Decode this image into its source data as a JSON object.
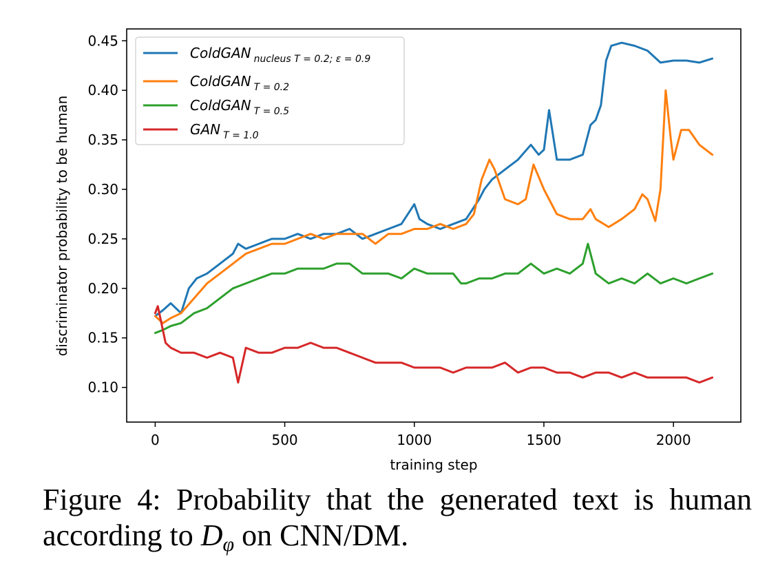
{
  "chart_data": {
    "type": "line",
    "title": "",
    "xlabel": "training step",
    "ylabel": "discriminator probability to be human",
    "xlim": [
      -110,
      2260
    ],
    "ylim": [
      0.065,
      0.462
    ],
    "xticks": [
      0,
      500,
      1000,
      1500,
      2000
    ],
    "xtick_labels": [
      "0",
      "500",
      "1000",
      "1500",
      "2000"
    ],
    "yticks": [
      0.1,
      0.15,
      0.2,
      0.25,
      0.3,
      0.35,
      0.4,
      0.45
    ],
    "ytick_labels": [
      "0.10",
      "0.15",
      "0.20",
      "0.25",
      "0.30",
      "0.35",
      "0.40",
      "0.45"
    ],
    "grid": false,
    "legend_position": "upper-left",
    "series": [
      {
        "name": "ColdGAN",
        "subscript": "nucleus T = 0.2; ε = 0.9",
        "color": "#1f77b4",
        "x": [
          0,
          30,
          60,
          100,
          130,
          160,
          200,
          250,
          300,
          320,
          350,
          400,
          450,
          500,
          550,
          600,
          650,
          700,
          750,
          800,
          850,
          900,
          950,
          1000,
          1020,
          1050,
          1100,
          1150,
          1200,
          1250,
          1270,
          1300,
          1350,
          1400,
          1450,
          1480,
          1500,
          1520,
          1550,
          1600,
          1650,
          1680,
          1700,
          1720,
          1740,
          1760,
          1800,
          1850,
          1900,
          1950,
          2000,
          2050,
          2100,
          2150
        ],
        "y": [
          0.172,
          0.178,
          0.185,
          0.175,
          0.2,
          0.21,
          0.215,
          0.225,
          0.235,
          0.245,
          0.24,
          0.245,
          0.25,
          0.25,
          0.255,
          0.25,
          0.255,
          0.255,
          0.26,
          0.25,
          0.255,
          0.26,
          0.265,
          0.285,
          0.27,
          0.265,
          0.26,
          0.265,
          0.27,
          0.29,
          0.3,
          0.31,
          0.32,
          0.33,
          0.345,
          0.335,
          0.34,
          0.38,
          0.33,
          0.33,
          0.335,
          0.365,
          0.37,
          0.385,
          0.43,
          0.445,
          0.448,
          0.445,
          0.44,
          0.428,
          0.43,
          0.43,
          0.428,
          0.432
        ]
      },
      {
        "name": "ColdGAN",
        "subscript": "T = 0.2",
        "color": "#ff7f0e",
        "x": [
          0,
          30,
          60,
          100,
          150,
          200,
          250,
          300,
          350,
          400,
          450,
          500,
          550,
          600,
          650,
          700,
          750,
          800,
          850,
          900,
          950,
          1000,
          1050,
          1100,
          1150,
          1200,
          1230,
          1260,
          1290,
          1310,
          1350,
          1400,
          1430,
          1460,
          1500,
          1550,
          1600,
          1650,
          1680,
          1700,
          1750,
          1800,
          1850,
          1880,
          1900,
          1930,
          1950,
          1970,
          1990,
          2000,
          2030,
          2060,
          2100,
          2150
        ],
        "y": [
          0.172,
          0.165,
          0.17,
          0.175,
          0.19,
          0.205,
          0.215,
          0.225,
          0.235,
          0.24,
          0.245,
          0.245,
          0.25,
          0.255,
          0.25,
          0.255,
          0.255,
          0.255,
          0.245,
          0.255,
          0.255,
          0.26,
          0.26,
          0.265,
          0.26,
          0.265,
          0.275,
          0.31,
          0.33,
          0.32,
          0.29,
          0.285,
          0.29,
          0.325,
          0.3,
          0.275,
          0.27,
          0.27,
          0.28,
          0.27,
          0.262,
          0.27,
          0.28,
          0.295,
          0.29,
          0.268,
          0.3,
          0.4,
          0.35,
          0.33,
          0.36,
          0.36,
          0.345,
          0.335
        ]
      },
      {
        "name": "ColdGAN",
        "subscript": "T = 0.5",
        "color": "#2ca02c",
        "x": [
          0,
          30,
          60,
          100,
          150,
          200,
          250,
          300,
          350,
          400,
          450,
          500,
          550,
          600,
          650,
          700,
          750,
          800,
          850,
          900,
          950,
          1000,
          1050,
          1100,
          1150,
          1180,
          1200,
          1250,
          1300,
          1350,
          1400,
          1450,
          1500,
          1550,
          1600,
          1650,
          1670,
          1690,
          1700,
          1750,
          1800,
          1850,
          1900,
          1950,
          2000,
          2050,
          2100,
          2150
        ],
        "y": [
          0.155,
          0.158,
          0.162,
          0.165,
          0.175,
          0.18,
          0.19,
          0.2,
          0.205,
          0.21,
          0.215,
          0.215,
          0.22,
          0.22,
          0.22,
          0.225,
          0.225,
          0.215,
          0.215,
          0.215,
          0.21,
          0.22,
          0.215,
          0.215,
          0.215,
          0.205,
          0.205,
          0.21,
          0.21,
          0.215,
          0.215,
          0.225,
          0.215,
          0.22,
          0.215,
          0.225,
          0.245,
          0.225,
          0.215,
          0.205,
          0.21,
          0.205,
          0.215,
          0.205,
          0.21,
          0.205,
          0.21,
          0.215
        ]
      },
      {
        "name": "GAN",
        "subscript": "T = 1.0",
        "color": "#d62728",
        "x": [
          0,
          10,
          20,
          40,
          60,
          100,
          150,
          200,
          250,
          300,
          320,
          350,
          400,
          450,
          500,
          550,
          600,
          650,
          700,
          750,
          800,
          850,
          900,
          950,
          1000,
          1050,
          1100,
          1150,
          1200,
          1250,
          1300,
          1350,
          1400,
          1450,
          1500,
          1550,
          1600,
          1650,
          1700,
          1750,
          1800,
          1850,
          1900,
          1950,
          2000,
          2050,
          2100,
          2150
        ],
        "y": [
          0.175,
          0.182,
          0.17,
          0.145,
          0.14,
          0.135,
          0.135,
          0.13,
          0.135,
          0.13,
          0.105,
          0.14,
          0.135,
          0.135,
          0.14,
          0.14,
          0.145,
          0.14,
          0.14,
          0.135,
          0.13,
          0.125,
          0.125,
          0.125,
          0.12,
          0.12,
          0.12,
          0.115,
          0.12,
          0.12,
          0.12,
          0.125,
          0.115,
          0.12,
          0.12,
          0.115,
          0.115,
          0.11,
          0.115,
          0.115,
          0.11,
          0.115,
          0.11,
          0.11,
          0.11,
          0.11,
          0.105,
          0.11
        ]
      }
    ]
  },
  "caption": {
    "text_before": "Figure 4:  Probability that the generated text is human according to ",
    "math_main": "D",
    "math_sub": "φ",
    "text_after": " on CNN/DM."
  }
}
